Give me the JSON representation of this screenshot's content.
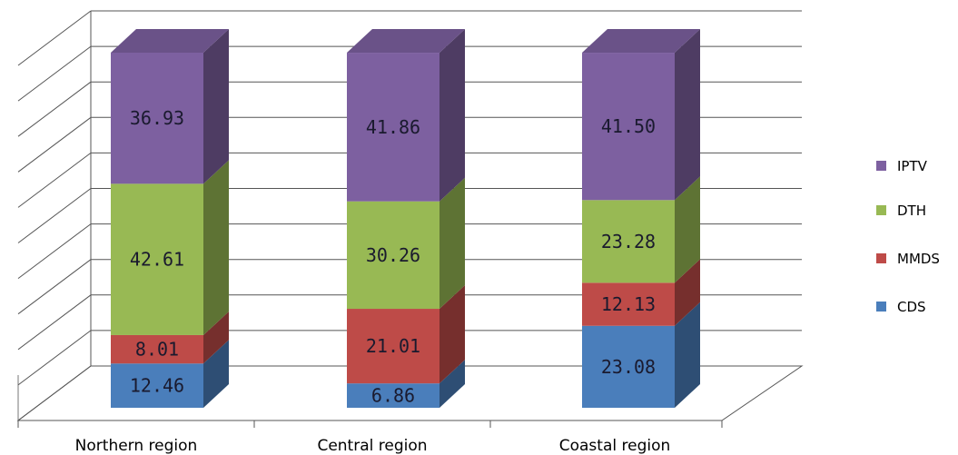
{
  "chart_data": {
    "type": "bar",
    "stacked": true,
    "three_d": true,
    "categories": [
      "Northern region",
      "Central region",
      "Coastal region"
    ],
    "series": [
      {
        "name": "CDS",
        "color": "#4a7ebb",
        "values": [
          12.46,
          6.86,
          23.08
        ]
      },
      {
        "name": "MMDS",
        "color": "#be4b48",
        "values": [
          8.01,
          21.01,
          12.13
        ]
      },
      {
        "name": "DTH",
        "color": "#98b954",
        "values": [
          42.61,
          30.26,
          23.28
        ]
      },
      {
        "name": "IPTV",
        "color": "#7d60a0",
        "values": [
          36.93,
          41.86,
          41.5
        ]
      }
    ],
    "value_labels": [
      [
        "12.46",
        "6.86",
        "23.08"
      ],
      [
        "8.01",
        "21.01",
        "12.13"
      ],
      [
        "42.61",
        "30.26",
        "23.28"
      ],
      [
        "36.93",
        "41.86",
        "41.50"
      ]
    ],
    "legend_order": [
      "IPTV",
      "DTH",
      "MMDS",
      "CDS"
    ],
    "legend_position": "right",
    "ylim": [
      0,
      100
    ],
    "grid": true,
    "title": "",
    "xlabel": "",
    "ylabel": ""
  }
}
